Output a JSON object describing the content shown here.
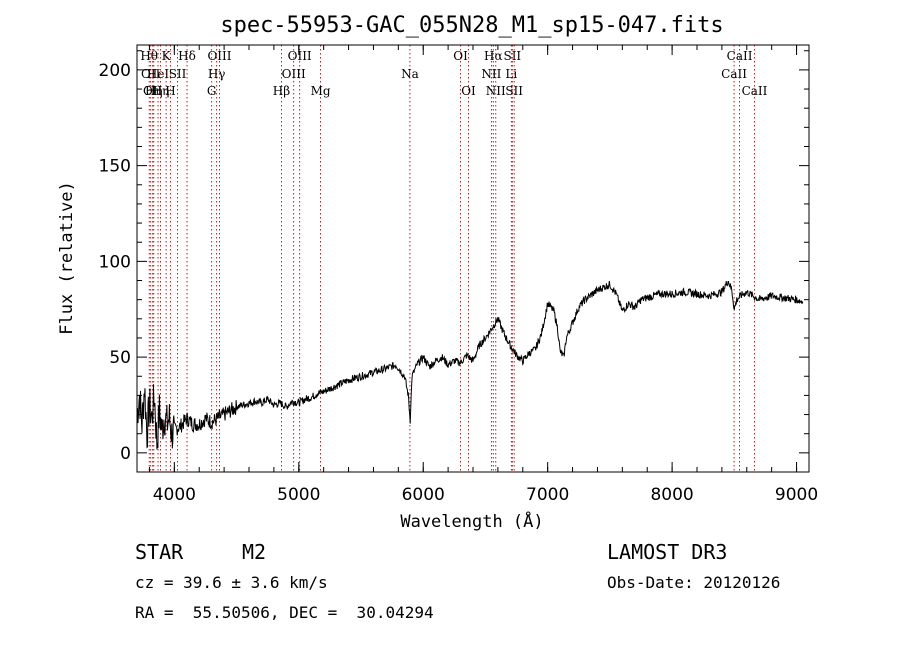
{
  "chart_data": {
    "type": "line",
    "title": "spec-55953-GAC_055N28_M1_sp15-047.fits",
    "xlabel": "Wavelength (Å)",
    "ylabel": "Flux (relative)",
    "xlim": [
      3700,
      9100
    ],
    "ylim": [
      -10,
      213
    ],
    "xticks": [
      4000,
      5000,
      6000,
      7000,
      8000,
      9000
    ],
    "yticks": [
      0,
      50,
      100,
      150,
      200
    ],
    "series": [
      {
        "name": "flux",
        "x": [
          3700,
          3720,
          3740,
          3760,
          3780,
          3800,
          3820,
          3840,
          3860,
          3880,
          3900,
          3920,
          3940,
          3960,
          3980,
          4000,
          4050,
          4100,
          4150,
          4200,
          4250,
          4300,
          4350,
          4400,
          4450,
          4500,
          4550,
          4600,
          4650,
          4700,
          4750,
          4800,
          4850,
          4900,
          4950,
          5000,
          5050,
          5100,
          5150,
          5200,
          5300,
          5400,
          5500,
          5600,
          5700,
          5780,
          5850,
          5880,
          5895,
          5910,
          5950,
          6000,
          6050,
          6100,
          6150,
          6200,
          6250,
          6300,
          6350,
          6400,
          6450,
          6500,
          6550,
          6600,
          6650,
          6700,
          6750,
          6800,
          6850,
          6900,
          6950,
          7000,
          7050,
          7080,
          7100,
          7130,
          7150,
          7200,
          7250,
          7300,
          7400,
          7500,
          7550,
          7600,
          7650,
          7700,
          7750,
          7800,
          7900,
          8000,
          8100,
          8200,
          8300,
          8400,
          8450,
          8480,
          8500,
          8520,
          8550,
          8600,
          8650,
          8700,
          8800,
          8900,
          9000,
          9050
        ],
        "values": [
          20,
          30,
          15,
          35,
          10,
          25,
          18,
          30,
          5,
          22,
          12,
          20,
          15,
          18,
          10,
          12,
          14,
          18,
          15,
          15,
          18,
          16,
          18,
          20,
          22,
          24,
          25,
          26,
          27,
          26,
          28,
          25,
          26,
          24,
          27,
          26,
          28,
          29,
          31,
          32,
          35,
          38,
          40,
          42,
          44,
          46,
          40,
          30,
          17,
          40,
          46,
          50,
          45,
          48,
          50,
          46,
          48,
          47,
          51,
          48,
          56,
          60,
          65,
          70,
          62,
          56,
          51,
          48,
          52,
          54,
          62,
          78,
          74,
          65,
          53,
          50,
          60,
          68,
          76,
          80,
          85,
          88,
          83,
          74,
          78,
          76,
          80,
          81,
          83,
          83,
          84,
          83,
          82,
          84,
          90,
          85,
          75,
          80,
          82,
          84,
          82,
          80,
          82,
          81,
          80,
          79
        ]
      }
    ],
    "lines": [
      {
        "wl": 3798,
        "label": "Hθ",
        "row": 0
      },
      {
        "wl": 3810,
        "label": "OII",
        "row": 1
      },
      {
        "wl": 3826,
        "label": "OII",
        "row": 2
      },
      {
        "wl": 3835,
        "label": "Hη",
        "row": 2
      },
      {
        "wl": 3869,
        "label": "HeI",
        "row": 1
      },
      {
        "wl": 3889,
        "label": "Hη",
        "row": 2
      },
      {
        "wl": 3934,
        "label": "K",
        "row": 0
      },
      {
        "wl": 3969,
        "label": "H",
        "row": 2
      },
      {
        "wl": 4026,
        "label": "SII",
        "row": 1
      },
      {
        "wl": 4102,
        "label": "Hδ",
        "row": 0
      },
      {
        "wl": 4300,
        "label": "G",
        "row": 2
      },
      {
        "wl": 4340,
        "label": "Hγ",
        "row": 1
      },
      {
        "wl": 4363,
        "label": "OIII",
        "row": 0
      },
      {
        "wl": 4861,
        "label": "Hβ",
        "row": 2
      },
      {
        "wl": 4959,
        "label": "OIII",
        "row": 1
      },
      {
        "wl": 5007,
        "label": "OIII",
        "row": 0
      },
      {
        "wl": 5175,
        "label": "Mg",
        "row": 2
      },
      {
        "wl": 5893,
        "label": "Na",
        "row": 1
      },
      {
        "wl": 6300,
        "label": "OI",
        "row": 0
      },
      {
        "wl": 6364,
        "label": "OI",
        "row": 2
      },
      {
        "wl": 6548,
        "label": "NII",
        "row": 1
      },
      {
        "wl": 6563,
        "label": "Hα",
        "row": 0
      },
      {
        "wl": 6583,
        "label": "NII",
        "row": 2
      },
      {
        "wl": 6708,
        "label": "Li",
        "row": 1
      },
      {
        "wl": 6716,
        "label": "SII",
        "row": 0
      },
      {
        "wl": 6731,
        "label": "SII",
        "row": 2
      },
      {
        "wl": 8498,
        "label": "CaII",
        "row": 1
      },
      {
        "wl": 8542,
        "label": "CaII",
        "row": 0
      },
      {
        "wl": 8662,
        "label": "CaII",
        "row": 2
      }
    ]
  },
  "info": {
    "object_class": "STAR",
    "subclass": "M2",
    "survey": "LAMOST DR3",
    "cz": "cz = 39.6 ± 3.6 km/s",
    "obs_date": "Obs-Date: 20120126",
    "coords": "RA =  55.50506, DEC =  30.04294"
  },
  "colors": {
    "line_marker": "#c00000",
    "spectrum": "#000000"
  }
}
